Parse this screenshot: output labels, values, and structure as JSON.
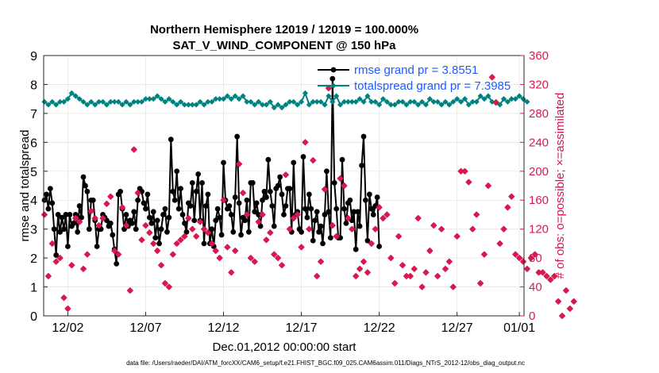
{
  "chart_data": {
    "type": "line",
    "title": "Northern Hemisphere 12019 / 12019 = 100.000%",
    "subtitle": "SAT_V_WIND_COMPONENT @ 150 hPa",
    "xlabel": "Dec.01,2012 00:00:00 start",
    "ylabel": "rmse and totalspread",
    "y2label": "# of obs: o=possible; ×=assimilated",
    "footer": "data file: /Users/raeder/DAI/ATM_forcXX/CAM6_setup/f.e21.FHIST_BGC.f09_025.CAM6assim.011/Diags_NTrS_2012-12/obs_diag_output.nc",
    "ylim": [
      0,
      9
    ],
    "y2lim": [
      0,
      360
    ],
    "xlim": [
      0.45,
      31.3
    ],
    "yticks": [
      "0",
      "1",
      "2",
      "3",
      "4",
      "5",
      "6",
      "7",
      "8",
      "9"
    ],
    "y2ticks": [
      "0",
      "40",
      "80",
      "120",
      "160",
      "200",
      "240",
      "280",
      "320",
      "360"
    ],
    "xticks": [
      {
        "x": 2,
        "label": "12/02"
      },
      {
        "x": 7,
        "label": "12/07"
      },
      {
        "x": 12,
        "label": "12/12"
      },
      {
        "x": 17,
        "label": "12/17"
      },
      {
        "x": 22,
        "label": "12/22"
      },
      {
        "x": 27,
        "label": "12/27"
      },
      {
        "x": 31,
        "label": "01/01"
      }
    ],
    "legend_position": "top-right",
    "series": [
      {
        "name": "rmse grand pr = 3.8551",
        "color": "#000000",
        "marker": "circle",
        "axis": "left",
        "x_start": 0.5,
        "x_step": 0.125,
        "values": [
          4.0,
          4.2,
          3.7,
          4.4,
          3.9,
          3.0,
          2.1,
          3.5,
          2.9,
          3.4,
          3.0,
          3.5,
          2.4,
          3.5,
          3.1,
          3.2,
          3.5,
          2.9,
          3.8,
          3.4,
          4.8,
          4.5,
          4.3,
          3.0,
          4.0,
          4.0,
          3.3,
          2.4,
          3.0,
          3.0,
          3.5,
          3.4,
          3.3,
          3.1,
          3.2,
          2.8,
          2.3,
          1.8,
          4.2,
          4.3,
          3.7,
          3.0,
          3.5,
          3.1,
          3.3,
          3.2,
          3.6,
          3.0,
          4.0,
          4.4,
          4.3,
          3.9,
          3.7,
          4.2,
          3.4,
          3.2,
          3.6,
          2.7,
          3.3,
          2.5,
          3.0,
          3.5,
          3.7,
          2.9,
          3.4,
          6.1,
          4.3,
          4.0,
          5.0,
          3.7,
          4.4,
          3.5,
          3.2,
          2.9,
          3.9,
          3.8,
          4.6,
          3.3,
          4.3,
          4.9,
          3.3,
          4.6,
          2.5,
          3.8,
          4.2,
          2.5,
          3.0,
          2.4,
          3.3,
          3.7,
          3.4,
          2.8,
          5.3,
          4.0,
          3.7,
          3.8,
          3.5,
          2.9,
          4.1,
          6.2,
          3.9,
          2.8,
          3.4,
          3.3,
          4.0,
          2.9,
          4.6,
          4.6,
          3.6,
          3.9,
          3.5,
          3.1,
          4.0,
          4.3,
          4.1,
          5.4,
          4.3,
          3.8,
          3.1,
          4.4,
          4.5,
          4.8,
          4.2,
          3.5,
          3.8,
          4.4,
          4.4,
          2.9,
          5.3,
          3.5,
          3.6,
          3.0,
          2.9,
          5.5,
          3.7,
          3.4,
          4.2,
          3.7,
          2.6,
          3.3,
          3.6,
          2.9,
          3.1,
          2.5,
          3.5,
          5.0,
          3.6,
          2.7,
          8.2,
          4.6,
          3.7,
          2.7,
          2.7,
          5.4,
          3.7,
          3.2,
          3.9,
          4.0,
          3.3,
          3.6,
          2.3,
          3.6,
          3.1,
          5.2,
          6.2,
          4.0,
          2.6,
          4.2,
          3.7,
          3.5,
          3.8,
          4.1,
          2.4
        ]
      },
      {
        "name": "totalspread grand pr = 7.3985",
        "color": "#00827f",
        "marker": "diamond",
        "axis": "left",
        "x_start": 0.5,
        "x_step": 0.25,
        "values": [
          7.4,
          7.3,
          7.4,
          7.3,
          7.4,
          7.4,
          7.5,
          7.7,
          7.6,
          7.5,
          7.4,
          7.3,
          7.4,
          7.3,
          7.4,
          7.4,
          7.3,
          7.4,
          7.4,
          7.4,
          7.3,
          7.4,
          7.3,
          7.4,
          7.4,
          7.4,
          7.5,
          7.5,
          7.5,
          7.6,
          7.5,
          7.4,
          7.5,
          7.4,
          7.3,
          7.4,
          7.3,
          7.3,
          7.3,
          7.3,
          7.4,
          7.3,
          7.4,
          7.4,
          7.5,
          7.5,
          7.5,
          7.6,
          7.5,
          7.6,
          7.5,
          7.6,
          7.4,
          7.4,
          7.3,
          7.4,
          7.3,
          7.3,
          7.4,
          7.2,
          7.3,
          7.2,
          7.3,
          7.4,
          7.4,
          7.3,
          7.4,
          7.7,
          7.3,
          7.4,
          7.4,
          7.4,
          7.3,
          7.6,
          7.4,
          7.6,
          7.3,
          7.4,
          7.4,
          7.4,
          7.4,
          7.5,
          7.4,
          7.6,
          7.4,
          7.4,
          7.3,
          7.5,
          7.4,
          7.3,
          7.3,
          7.4,
          7.4,
          7.3,
          7.4,
          7.4,
          7.3,
          7.4,
          7.3,
          7.5,
          7.4,
          7.4,
          7.3,
          7.4,
          7.3,
          7.4,
          7.5,
          7.4,
          7.5,
          7.3,
          7.4,
          7.4,
          7.6,
          7.5,
          7.6,
          7.4,
          7.4,
          7.3,
          7.5,
          7.4,
          7.5,
          7.5,
          7.6,
          7.5,
          7.4
        ]
      },
      {
        "name": "# obs possible / assimilated",
        "color": "#d7194f",
        "marker": "cross",
        "axis": "right",
        "x_start": 0.5,
        "x_step": 0.25,
        "values": [
          140,
          55,
          100,
          75,
          80,
          25,
          10,
          70,
          135,
          130,
          65,
          85,
          145,
          135,
          125,
          135,
          155,
          165,
          90,
          85,
          150,
          125,
          35,
          230,
          170,
          105,
          125,
          115,
          100,
          90,
          70,
          45,
          40,
          85,
          100,
          105,
          110,
          135,
          120,
          110,
          130,
          120,
          115,
          100,
          90,
          80,
          160,
          95,
          60,
          90,
          210,
          170,
          140,
          80,
          75,
          130,
          140,
          105,
          115,
          85,
          80,
          70,
          195,
          120,
          135,
          140,
          95,
          240,
          120,
          215,
          55,
          75,
          175,
          315,
          125,
          110,
          190,
          180,
          135,
          120,
          55,
          65,
          75,
          60,
          100,
          120,
          150,
          135,
          140,
          80,
          45,
          110,
          70,
          55,
          55,
          65,
          135,
          40,
          60,
          90,
          125,
          55,
          120,
          65,
          75,
          40,
          110,
          200,
          200,
          185,
          120,
          140,
          45,
          85,
          180,
          330,
          295,
          100,
          120,
          150,
          165,
          85,
          80,
          75,
          65,
          80,
          85,
          60,
          60,
          55,
          50,
          55,
          20,
          0,
          35,
          10,
          20
        ]
      }
    ]
  }
}
